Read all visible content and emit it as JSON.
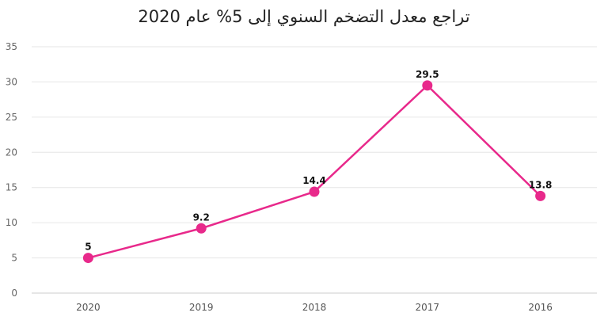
{
  "chart_data": {
    "type": "line",
    "title": "تراجع معدل التضخم السنوي إلى 5% عام 2020",
    "categories": [
      "2020",
      "2019",
      "2018",
      "2017",
      "2016"
    ],
    "series": [
      {
        "values": [
          5,
          9.2,
          14.4,
          29.5,
          13.8
        ],
        "data_labels": [
          "5",
          "9.2",
          "14.4",
          "29.5",
          "13.8"
        ]
      }
    ],
    "yticks": [
      "0",
      "5",
      "10",
      "15",
      "20",
      "25",
      "30",
      "35"
    ],
    "ylim": [
      0,
      35
    ],
    "grid": true,
    "legend": "none",
    "colors": {
      "series": "#e8298b",
      "marker": "#e8298b",
      "grid": "#e6e6e6",
      "axis": "#cccccc"
    }
  }
}
